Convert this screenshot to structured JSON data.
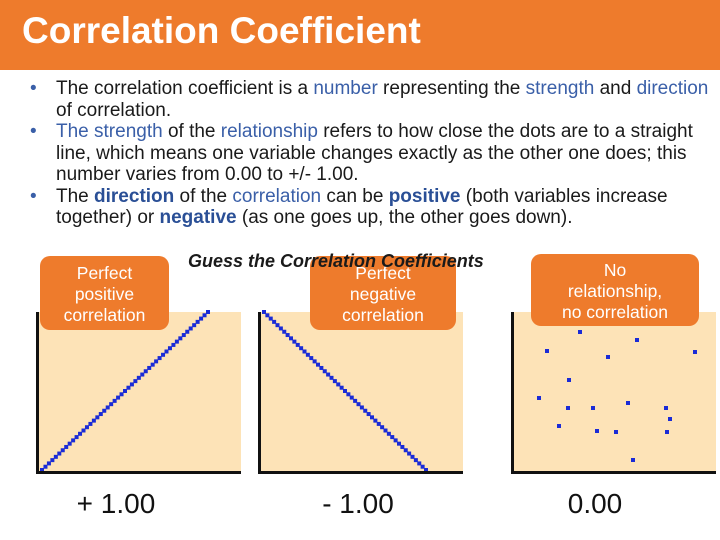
{
  "title": "Correlation Coefficient",
  "bullets": [
    {
      "parts": [
        {
          "text": "The correlation coefficient is a ",
          "style": "normal"
        },
        {
          "text": "number",
          "style": "blue"
        },
        {
          "text": " representing the ",
          "style": "normal"
        },
        {
          "text": "strength",
          "style": "blue"
        },
        {
          "text": " and ",
          "style": "normal"
        },
        {
          "text": "direction",
          "style": "blue"
        },
        {
          "text": " of correlation.",
          "style": "normal"
        }
      ]
    },
    {
      "parts": [
        {
          "text": "The strength",
          "style": "blue"
        },
        {
          "text": " of the ",
          "style": "normal"
        },
        {
          "text": "relationship",
          "style": "blue"
        },
        {
          "text": " refers to how close the dots are to a straight line, which means one variable changes exactly as the other one does; this number varies from 0.00 to   +/- 1.00.",
          "style": "normal"
        }
      ]
    },
    {
      "parts": [
        {
          "text": "The ",
          "style": "normal"
        },
        {
          "text": "direction",
          "style": "bold-blue"
        },
        {
          "text": " of the ",
          "style": "normal"
        },
        {
          "text": "correlation",
          "style": "blue"
        },
        {
          "text": " can be ",
          "style": "normal"
        },
        {
          "text": "positive",
          "style": "bold-blue"
        },
        {
          "text": " (both variables increase together) or ",
          "style": "normal"
        },
        {
          "text": "negative",
          "style": "bold-blue"
        },
        {
          "text": " (as one goes up, the other goes down).",
          "style": "normal"
        }
      ]
    }
  ],
  "subtitle": "Guess the Correlation Coefficients",
  "charts": [
    {
      "callout": "Perfect\npositive\ncorrelation",
      "coefficient": "+ 1.00",
      "pattern": "positive-line"
    },
    {
      "callout": "Perfect\nnegative\ncorrelation",
      "coefficient": "- 1.00",
      "pattern": "negative-line"
    },
    {
      "callout": "No\nrelationship,\nno correlation",
      "coefficient": "0.00",
      "pattern": "scatter"
    }
  ],
  "colors": {
    "accent": "#ee7b2c",
    "chart_background": "#fde3b7",
    "dots": "#1a2bd6",
    "highlight_text": "#3a5fa8"
  }
}
